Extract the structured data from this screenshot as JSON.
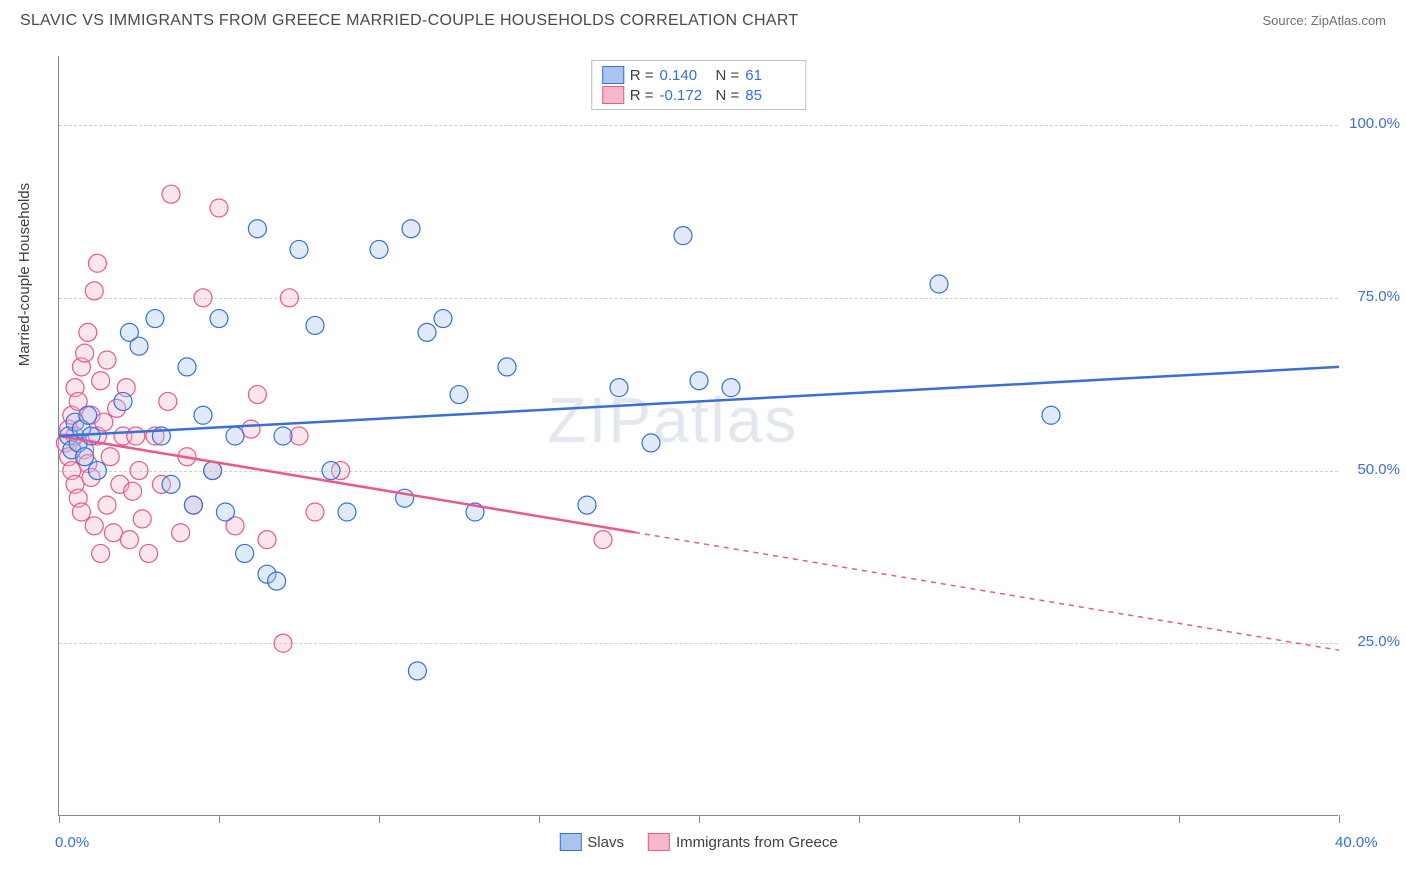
{
  "title": "SLAVIC VS IMMIGRANTS FROM GREECE MARRIED-COUPLE HOUSEHOLDS CORRELATION CHART",
  "source": "Source: ZipAtlas.com",
  "watermark": "ZIPatlas",
  "chart": {
    "type": "scatter",
    "ylabel": "Married-couple Households",
    "xlim": [
      0,
      40
    ],
    "ylim": [
      0,
      110
    ],
    "x_ticks": [
      0,
      5,
      10,
      15,
      20,
      25,
      30,
      35,
      40
    ],
    "x_tick_labels": {
      "0": "0.0%",
      "40": "40.0%"
    },
    "y_gridlines": [
      25,
      50,
      75,
      100
    ],
    "y_tick_labels": {
      "25": "25.0%",
      "50": "50.0%",
      "75": "75.0%",
      "100": "100.0%"
    },
    "background_color": "#ffffff",
    "grid_color": "#d0d0d0",
    "axis_color": "#888888",
    "label_fontsize": 15,
    "point_radius": 9,
    "point_fill_opacity": 0.35,
    "point_stroke_width": 1.2,
    "series": [
      {
        "name": "Slavs",
        "color": "#3b6fd6",
        "fill": "#a7c5ee",
        "r_value": "0.140",
        "n_value": "61",
        "regression": {
          "x1": 0,
          "y1": 55,
          "x2": 40,
          "y2": 65,
          "solid_to_x": 40
        },
        "points": [
          [
            0.3,
            55
          ],
          [
            0.4,
            53
          ],
          [
            0.5,
            57
          ],
          [
            0.6,
            54
          ],
          [
            0.7,
            56
          ],
          [
            0.8,
            52
          ],
          [
            0.9,
            58
          ],
          [
            1.0,
            55
          ],
          [
            1.2,
            50
          ],
          [
            2.0,
            60
          ],
          [
            2.2,
            70
          ],
          [
            2.5,
            68
          ],
          [
            3.0,
            72
          ],
          [
            3.2,
            55
          ],
          [
            3.5,
            48
          ],
          [
            4.0,
            65
          ],
          [
            4.2,
            45
          ],
          [
            4.5,
            58
          ],
          [
            4.8,
            50
          ],
          [
            5.0,
            72
          ],
          [
            5.2,
            44
          ],
          [
            5.5,
            55
          ],
          [
            5.8,
            38
          ],
          [
            6.2,
            85
          ],
          [
            6.5,
            35
          ],
          [
            6.8,
            34
          ],
          [
            7.0,
            55
          ],
          [
            7.5,
            82
          ],
          [
            8.0,
            71
          ],
          [
            8.5,
            50
          ],
          [
            9.0,
            44
          ],
          [
            10.0,
            82
          ],
          [
            10.8,
            46
          ],
          [
            11.0,
            85
          ],
          [
            11.5,
            70
          ],
          [
            12.0,
            72
          ],
          [
            12.5,
            61
          ],
          [
            13.0,
            44
          ],
          [
            14.0,
            65
          ],
          [
            11.2,
            21
          ],
          [
            16.5,
            45
          ],
          [
            17.5,
            62
          ],
          [
            18.5,
            54
          ],
          [
            19.5,
            84
          ],
          [
            20.0,
            63
          ],
          [
            21.0,
            62
          ],
          [
            27.5,
            77
          ],
          [
            31.0,
            58
          ]
        ]
      },
      {
        "name": "Immigrants from Greece",
        "color": "#e85a8a",
        "fill": "#f5b8cd",
        "r_value": "-0.172",
        "n_value": "85",
        "regression": {
          "x1": 0,
          "y1": 55,
          "x2": 40,
          "y2": 24,
          "solid_to_x": 18
        },
        "points": [
          [
            0.2,
            54
          ],
          [
            0.3,
            56
          ],
          [
            0.3,
            52
          ],
          [
            0.4,
            58
          ],
          [
            0.4,
            50
          ],
          [
            0.5,
            62
          ],
          [
            0.5,
            48
          ],
          [
            0.5,
            55
          ],
          [
            0.6,
            60
          ],
          [
            0.6,
            46
          ],
          [
            0.7,
            65
          ],
          [
            0.7,
            44
          ],
          [
            0.8,
            53
          ],
          [
            0.8,
            67
          ],
          [
            0.9,
            51
          ],
          [
            0.9,
            70
          ],
          [
            1.0,
            49
          ],
          [
            1.0,
            58
          ],
          [
            1.1,
            76
          ],
          [
            1.1,
            42
          ],
          [
            1.2,
            55
          ],
          [
            1.2,
            80
          ],
          [
            1.3,
            63
          ],
          [
            1.3,
            38
          ],
          [
            1.4,
            57
          ],
          [
            1.5,
            45
          ],
          [
            1.5,
            66
          ],
          [
            1.6,
            52
          ],
          [
            1.7,
            41
          ],
          [
            1.8,
            59
          ],
          [
            1.9,
            48
          ],
          [
            2.0,
            55
          ],
          [
            2.1,
            62
          ],
          [
            2.2,
            40
          ],
          [
            2.3,
            47
          ],
          [
            2.4,
            55
          ],
          [
            2.5,
            50
          ],
          [
            2.6,
            43
          ],
          [
            2.8,
            38
          ],
          [
            3.0,
            55
          ],
          [
            3.2,
            48
          ],
          [
            3.4,
            60
          ],
          [
            3.5,
            90
          ],
          [
            3.8,
            41
          ],
          [
            4.0,
            52
          ],
          [
            4.2,
            45
          ],
          [
            4.5,
            75
          ],
          [
            4.8,
            50
          ],
          [
            5.0,
            88
          ],
          [
            5.5,
            42
          ],
          [
            6.0,
            56
          ],
          [
            6.2,
            61
          ],
          [
            6.5,
            40
          ],
          [
            7.0,
            25
          ],
          [
            7.2,
            75
          ],
          [
            7.5,
            55
          ],
          [
            8.0,
            44
          ],
          [
            8.8,
            50
          ],
          [
            17.0,
            40
          ]
        ]
      }
    ],
    "legend_top_labels": {
      "R": "R  =",
      "N": "N  ="
    },
    "legend_bottom": [
      "Slavs",
      "Immigrants from Greece"
    ]
  }
}
